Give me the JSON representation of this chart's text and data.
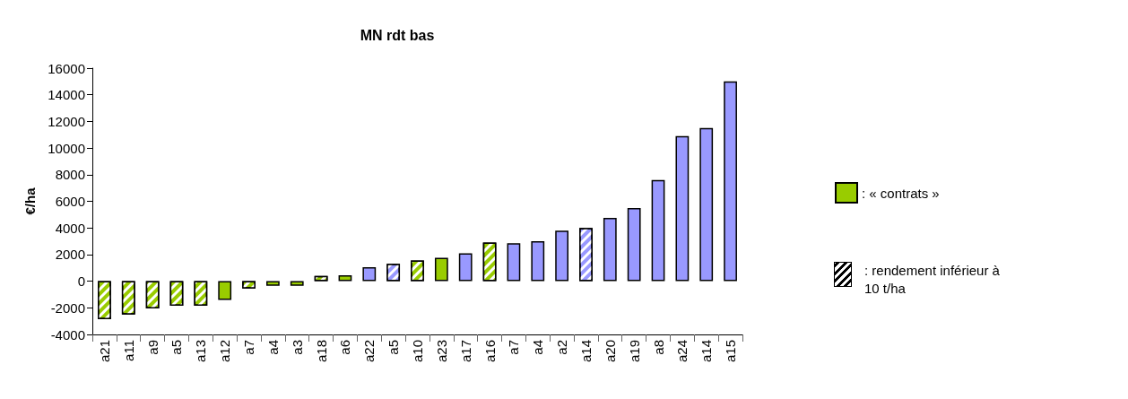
{
  "chart_data": {
    "type": "bar",
    "title": "MN rdt bas",
    "ylabel": "€/ha",
    "categories": [
      "a21",
      "a11",
      "a9",
      "a5",
      "a13",
      "a12",
      "a7",
      "a4",
      "a3",
      "a18",
      "a6",
      "a22",
      "a5",
      "a10",
      "a23",
      "a17",
      "a16",
      "a7",
      "a4",
      "a2",
      "a14",
      "a20",
      "a19",
      "a8",
      "a24",
      "a14",
      "a15"
    ],
    "stacked": true,
    "series": [
      {
        "name": ": « contrats »",
        "color": "#99cc00",
        "values": [
          null,
          null,
          null,
          null,
          null,
          -1400,
          null,
          -350,
          -350,
          null,
          450,
          null,
          null,
          null,
          1750,
          null,
          null,
          null,
          null,
          null,
          null,
          null,
          null,
          null,
          null,
          null,
          null
        ]
      },
      {
        "color": "#9999ff",
        "values": [
          null,
          null,
          null,
          null,
          null,
          null,
          null,
          null,
          null,
          null,
          null,
          1050,
          null,
          null,
          null,
          2100,
          null,
          2850,
          3000,
          3800,
          null,
          4750,
          5500,
          7600,
          10900,
          11500,
          15000
        ]
      },
      {
        "colors": [
          "#99cc00",
          "#99cc00",
          "#99cc00",
          "#99cc00",
          "#99cc00",
          null,
          "#99cc00",
          null,
          null,
          "#99cc00",
          null,
          null,
          "#9999ff",
          "#99cc00",
          null,
          null,
          "#99cc00",
          null,
          null,
          null,
          "#9999ff",
          null,
          null,
          null,
          null,
          null,
          null
        ],
        "values": [
          -2850,
          -2500,
          -2050,
          -1850,
          -1850,
          null,
          -550,
          null,
          null,
          400,
          null,
          null,
          1300,
          1550,
          null,
          null,
          2900,
          null,
          null,
          null,
          4000,
          null,
          null,
          null,
          null,
          null,
          null
        ]
      }
    ],
    "ylim": [
      -4000,
      16000
    ],
    "yticks": [
      -4000,
      -2000,
      0,
      2000,
      4000,
      6000,
      8000,
      10000,
      12000,
      14000,
      16000
    ],
    "grid": false,
    "legend": "right",
    "annotations": [
      ": rendement inférieur à 10 t/ha"
    ]
  }
}
